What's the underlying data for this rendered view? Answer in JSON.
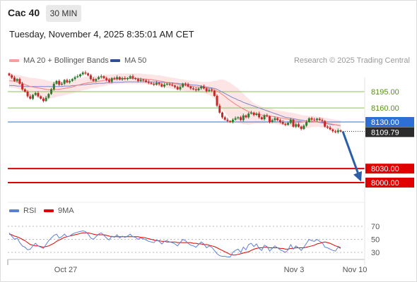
{
  "header": {
    "symbol": "Cac 40",
    "timeframe": "30 MIN",
    "datetime": "Tuesday, November 4, 2025 8:35:01 AM CET"
  },
  "legend": {
    "main": [
      "MA 20 + Bollinger Bands",
      "MA 50"
    ],
    "rsi": [
      "RSI",
      "9MA"
    ]
  },
  "credit": "Research © 2025 Trading Central",
  "colors": {
    "up": "#2e7d32",
    "down": "#c62828",
    "ma20": "#f08080",
    "band": "#fde2e2",
    "ma50": "#7b86c9",
    "resistance": "#8bc34a",
    "current": "#2e6fd6",
    "support": "#e00000",
    "rsi": "#5c7fd6",
    "rsi_ma": "#e00000",
    "arrow": "#2a5fa8"
  },
  "chart_data": {
    "type": "candlestick",
    "ylim": [
      7990,
      8252
    ],
    "x_labels": [
      "Oct 27",
      "Nov 3",
      "Nov 10"
    ],
    "levels": [
      {
        "value": 8195.0,
        "label": "8195.00",
        "kind": "resistance"
      },
      {
        "value": 8160.0,
        "label": "8160.00",
        "kind": "resistance"
      },
      {
        "value": 8130.0,
        "label": "8130.00",
        "kind": "current"
      },
      {
        "value": 8030.0,
        "label": "8030.00",
        "kind": "support"
      },
      {
        "value": 8000.0,
        "label": "8000.00",
        "kind": "support"
      }
    ],
    "last_price": {
      "value": 8109.79,
      "label": "8109.79"
    },
    "forecast": {
      "from": 8109.79,
      "to": 8002
    },
    "closes": [
      8230,
      8225,
      8218,
      8222,
      8212,
      8200,
      8195,
      8185,
      8180,
      8188,
      8192,
      8185,
      8180,
      8175,
      8182,
      8190,
      8200,
      8212,
      8218,
      8210,
      8212,
      8220,
      8215,
      8218,
      8222,
      8226,
      8228,
      8232,
      8236,
      8234,
      8230,
      8222,
      8218,
      8222,
      8226,
      8228,
      8224,
      8220,
      8216,
      8224,
      8222,
      8226,
      8221,
      8224,
      8222,
      8224,
      8228,
      8224,
      8222,
      8218,
      8221,
      8219,
      8216,
      8214,
      8212,
      8210,
      8214,
      8211,
      8206,
      8210,
      8212,
      8210,
      8208,
      8205,
      8200,
      8205,
      8212,
      8210,
      8206,
      8202,
      8200,
      8198,
      8202,
      8206,
      8202,
      8196,
      8199,
      8197,
      8186,
      8165,
      8150,
      8140,
      8135,
      8132,
      8130,
      8135,
      8138,
      8140,
      8134,
      8144,
      8140,
      8148,
      8150,
      8145,
      8148,
      8140,
      8136,
      8144,
      8142,
      8130,
      8134,
      8138,
      8134,
      8130,
      8126,
      8124,
      8128,
      8135,
      8120,
      8125,
      8120,
      8115,
      8122,
      8130,
      8138,
      8135,
      8134,
      8137,
      8134,
      8132,
      8120,
      8118,
      8114,
      8110,
      8108,
      8112,
      8109.79
    ],
    "ma20": [
      8218,
      8218,
      8217,
      8216,
      8215,
      8213,
      8210,
      8208,
      8206,
      8205,
      8204,
      8203,
      8202,
      8201,
      8200,
      8199,
      8199,
      8199,
      8200,
      8200,
      8201,
      8202,
      8203,
      8204,
      8205,
      8207,
      8209,
      8210,
      8212,
      8213,
      8214,
      8215,
      8216,
      8216,
      8217,
      8218,
      8219,
      8220,
      8221,
      8221,
      8222,
      8222,
      8223,
      8223,
      8223,
      8223,
      8223,
      8223,
      8223,
      8223,
      8223,
      8222,
      8222,
      8221,
      8221,
      8220,
      8219,
      8218,
      8217,
      8216,
      8215,
      8214,
      8213,
      8212,
      8211,
      8210,
      8209,
      8208,
      8207,
      8207,
      8206,
      8205,
      8205,
      8204,
      8204,
      8203,
      8202,
      8201,
      8199,
      8196,
      8193,
      8189,
      8185,
      8180,
      8176,
      8172,
      8168,
      8165,
      8161,
      8158,
      8155,
      8152,
      8150,
      8148,
      8147,
      8146,
      8145,
      8144,
      8144,
      8143,
      8142,
      8141,
      8140,
      8139,
      8138,
      8137,
      8136,
      8135,
      8134,
      8133,
      8132,
      8131,
      8130,
      8130,
      8130,
      8131,
      8131,
      8131,
      8130,
      8129,
      8128,
      8127,
      8126,
      8125,
      8124,
      8123,
      8122
    ],
    "bb_width": [
      14,
      14,
      14,
      14,
      15,
      16,
      17,
      18,
      19,
      19,
      20,
      20,
      20,
      20,
      20,
      19,
      18,
      17,
      16,
      15,
      15,
      15,
      14,
      14,
      14,
      14,
      14,
      14,
      14,
      14,
      14,
      13,
      13,
      13,
      12,
      12,
      12,
      12,
      11,
      11,
      11,
      11,
      11,
      11,
      11,
      11,
      11,
      11,
      11,
      11,
      11,
      11,
      11,
      11,
      11,
      11,
      11,
      12,
      12,
      12,
      12,
      12,
      12,
      12,
      12,
      12,
      12,
      12,
      12,
      12,
      12,
      12,
      12,
      12,
      12,
      13,
      14,
      16,
      19,
      23,
      28,
      32,
      35,
      37,
      38,
      38,
      38,
      37,
      35,
      33,
      30,
      28,
      25,
      22,
      20,
      19,
      18,
      17,
      16,
      16,
      16,
      15,
      15,
      15,
      15,
      15,
      15,
      15,
      15,
      15,
      15,
      14,
      14,
      14,
      13,
      12,
      12,
      11,
      11,
      11,
      11,
      11,
      11,
      11,
      11,
      11,
      11
    ],
    "ma50": [
      8208,
      8208,
      8208,
      8207,
      8207,
      8207,
      8206,
      8206,
      8206,
      8206,
      8206,
      8206,
      8206,
      8206,
      8206,
      8206,
      8206,
      8206,
      8206,
      8206,
      8206,
      8207,
      8207,
      8207,
      8208,
      8208,
      8209,
      8209,
      8210,
      8210,
      8211,
      8211,
      8212,
      8212,
      8213,
      8213,
      8213,
      8214,
      8214,
      8214,
      8215,
      8215,
      8215,
      8215,
      8216,
      8216,
      8216,
      8216,
      8216,
      8216,
      8216,
      8216,
      8216,
      8216,
      8216,
      8216,
      8216,
      8215,
      8215,
      8215,
      8214,
      8214,
      8214,
      8213,
      8213,
      8212,
      8212,
      8211,
      8211,
      8210,
      8209,
      8209,
      8208,
      8207,
      8206,
      8205,
      8204,
      8203,
      8202,
      8200,
      8197,
      8194,
      8191,
      8188,
      8185,
      8182,
      8180,
      8177,
      8175,
      8172,
      8170,
      8168,
      8166,
      8164,
      8162,
      8160,
      8158,
      8156,
      8154,
      8152,
      8150,
      8148,
      8146,
      8144,
      8142,
      8140,
      8139,
      8138,
      8137,
      8136,
      8135,
      8134,
      8133,
      8132,
      8131,
      8131,
      8130,
      8130,
      8129,
      8128,
      8127,
      8126,
      8125,
      8124,
      8124,
      8123,
      8122
    ],
    "rsi": {
      "levels": [
        70,
        50,
        30
      ],
      "ylim": [
        20,
        78
      ],
      "rsi_values": [
        60,
        55,
        50,
        52,
        45,
        40,
        38,
        34,
        35,
        40,
        44,
        40,
        38,
        36,
        42,
        48,
        52,
        56,
        58,
        52,
        54,
        58,
        54,
        55,
        58,
        60,
        61,
        62,
        63,
        62,
        58,
        52,
        50,
        54,
        58,
        60,
        56,
        52,
        49,
        55,
        53,
        57,
        52,
        55,
        53,
        55,
        58,
        54,
        53,
        50,
        52,
        51,
        49,
        47,
        46,
        45,
        49,
        47,
        43,
        47,
        48,
        46,
        45,
        43,
        40,
        45,
        50,
        48,
        44,
        41,
        40,
        38,
        42,
        46,
        43,
        37,
        40,
        38,
        33,
        28,
        25,
        24,
        24,
        23,
        23,
        30,
        33,
        35,
        30,
        38,
        34,
        42,
        44,
        39,
        43,
        36,
        33,
        41,
        39,
        32,
        36,
        40,
        37,
        34,
        32,
        30,
        34,
        42,
        35,
        40,
        37,
        33,
        38,
        44,
        50,
        48,
        47,
        50,
        47,
        45,
        38,
        37,
        35,
        33,
        32,
        38,
        36
      ],
      "ma_values": [
        58,
        57,
        55,
        54,
        52,
        50,
        48,
        45,
        42,
        41,
        40,
        40,
        39,
        38,
        39,
        40,
        42,
        44,
        47,
        49,
        51,
        53,
        54,
        55,
        56,
        57,
        58,
        59,
        60,
        60,
        60,
        59,
        58,
        57,
        57,
        57,
        57,
        56,
        55,
        54,
        54,
        54,
        54,
        54,
        54,
        54,
        54,
        54,
        54,
        54,
        53,
        53,
        52,
        51,
        50,
        49,
        48,
        48,
        47,
        47,
        46,
        46,
        46,
        46,
        45,
        45,
        45,
        45,
        45,
        45,
        44,
        44,
        43,
        43,
        42,
        42,
        41,
        40,
        39,
        37,
        35,
        33,
        31,
        29,
        27,
        26,
        26,
        27,
        28,
        29,
        30,
        31,
        33,
        35,
        36,
        37,
        37,
        38,
        38,
        37,
        37,
        37,
        37,
        36,
        36,
        35,
        35,
        36,
        36,
        37,
        37,
        37,
        37,
        38,
        39,
        40,
        41,
        43,
        44,
        45,
        46,
        45,
        44,
        42,
        40,
        39,
        37
      ]
    }
  }
}
